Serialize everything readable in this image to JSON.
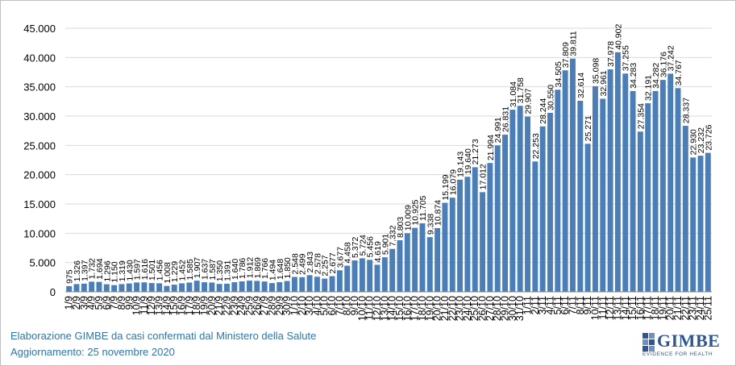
{
  "chart_data": {
    "type": "bar",
    "title": "",
    "xlabel": "",
    "ylabel": "",
    "ylim": [
      0,
      45000
    ],
    "yticks": [
      "0",
      "5.000",
      "10.000",
      "15.000",
      "20.000",
      "25.000",
      "30.000",
      "35.000",
      "40.000",
      "45.000"
    ],
    "grid": true,
    "legend": "none",
    "bar_color": "#4a7ebb",
    "categories": [
      "1/9",
      "2/9",
      "3/9",
      "4/9",
      "5/9",
      "6/9",
      "7/9",
      "8/9",
      "9/9",
      "10/9",
      "11/9",
      "12/9",
      "13/9",
      "14/9",
      "15/9",
      "16/9",
      "17/9",
      "18/9",
      "19/9",
      "20/9",
      "21/9",
      "22/9",
      "23/9",
      "24/9",
      "25/9",
      "26/9",
      "27/9",
      "28/9",
      "29/9",
      "30/9",
      "1/10",
      "2/10",
      "3/10",
      "4/10",
      "5/10",
      "6/10",
      "7/10",
      "8/10",
      "9/10",
      "10/10",
      "11/10",
      "12/10",
      "13/10",
      "14/10",
      "15/10",
      "16/10",
      "17/10",
      "18/10",
      "19/10",
      "20/10",
      "21/10",
      "22/10",
      "23/10",
      "24/10",
      "25/10",
      "26/10",
      "27/10",
      "28/10",
      "29/10",
      "30/10",
      "31/10",
      "1/11",
      "2/11",
      "3/11",
      "4/11",
      "5/11",
      "6/11",
      "7/11",
      "8/11",
      "9/11",
      "10/11",
      "11/11",
      "12/11",
      "13/11",
      "14/11",
      "15/11",
      "16/11",
      "17/11",
      "18/11",
      "19/11",
      "20/11",
      "21/11",
      "22/11",
      "23/11",
      "24/11",
      "25/11"
    ],
    "values": [
      975,
      1326,
      1397,
      1732,
      1694,
      1296,
      1150,
      1319,
      1430,
      1597,
      1616,
      1501,
      1456,
      1008,
      1229,
      1452,
      1585,
      1907,
      1637,
      1587,
      1350,
      1391,
      1640,
      1786,
      1912,
      1869,
      1766,
      1494,
      1648,
      1850,
      2548,
      2499,
      2843,
      2578,
      2257,
      2677,
      3677,
      4458,
      5372,
      5724,
      5456,
      4619,
      5901,
      7332,
      8803,
      10009,
      10925,
      11705,
      9338,
      10874,
      15199,
      16079,
      19143,
      19640,
      21273,
      17012,
      21994,
      24991,
      26831,
      31084,
      31758,
      29907,
      22253,
      28244,
      30550,
      34505,
      37809,
      39811,
      32614,
      25271,
      35098,
      32961,
      37978,
      40902,
      37255,
      34283,
      27354,
      32191,
      34282,
      36176,
      37242,
      34767,
      28337,
      22930,
      23232,
      23726
    ],
    "labels": [
      "975",
      "1.326",
      "1.397",
      "1.732",
      "1.694",
      "1.296",
      "1.150",
      "1.319",
      "1.430",
      "1.597",
      "1.616",
      "1.501",
      "1.456",
      "1.008",
      "1.229",
      "1.452",
      "1.585",
      "1.907",
      "1.637",
      "1.587",
      "1.350",
      "1.391",
      "1.640",
      "1.786",
      "1.912",
      "1.869",
      "1.766",
      "1.494",
      "1.648",
      "1.850",
      "2.548",
      "2.499",
      "2.843",
      "2.578",
      "2.257",
      "2.677",
      "3.677",
      "4.458",
      "5.372",
      "5.724",
      "5.456",
      "4.619",
      "5.901",
      "7.332",
      "8.803",
      "10.009",
      "10.925",
      "11.705",
      "9.338",
      "10.874",
      "15.199",
      "16.079",
      "19.143",
      "19.640",
      "21.273",
      "17.012",
      "21.994",
      "24.991",
      "26.831",
      "31.084",
      "31.758",
      "29.907",
      "22.253",
      "28.244",
      "30.550",
      "34.505",
      "37.809",
      "39.811",
      "32.614",
      "25.271",
      "35.098",
      "32.961",
      "37.978",
      "40.902",
      "37.255",
      "34.283",
      "27.354",
      "32.191",
      "34.282",
      "36.176",
      "37.242",
      "34.767",
      "28.337",
      "22.930",
      "23.232",
      "23.726"
    ]
  },
  "footer": {
    "source": "Elaborazione GIMBE da casi confermati dal Ministero della Salute",
    "updated": "Aggiornamento: 25 novembre 2020"
  },
  "logo": {
    "name": "GIMBE",
    "tagline": "EVIDENCE FOR HEALTH"
  },
  "colors": {
    "bars": "#4a7ebb",
    "grid": "#d9d9d9",
    "footer_text": "#2e75b6",
    "logo": "#2e5597"
  }
}
